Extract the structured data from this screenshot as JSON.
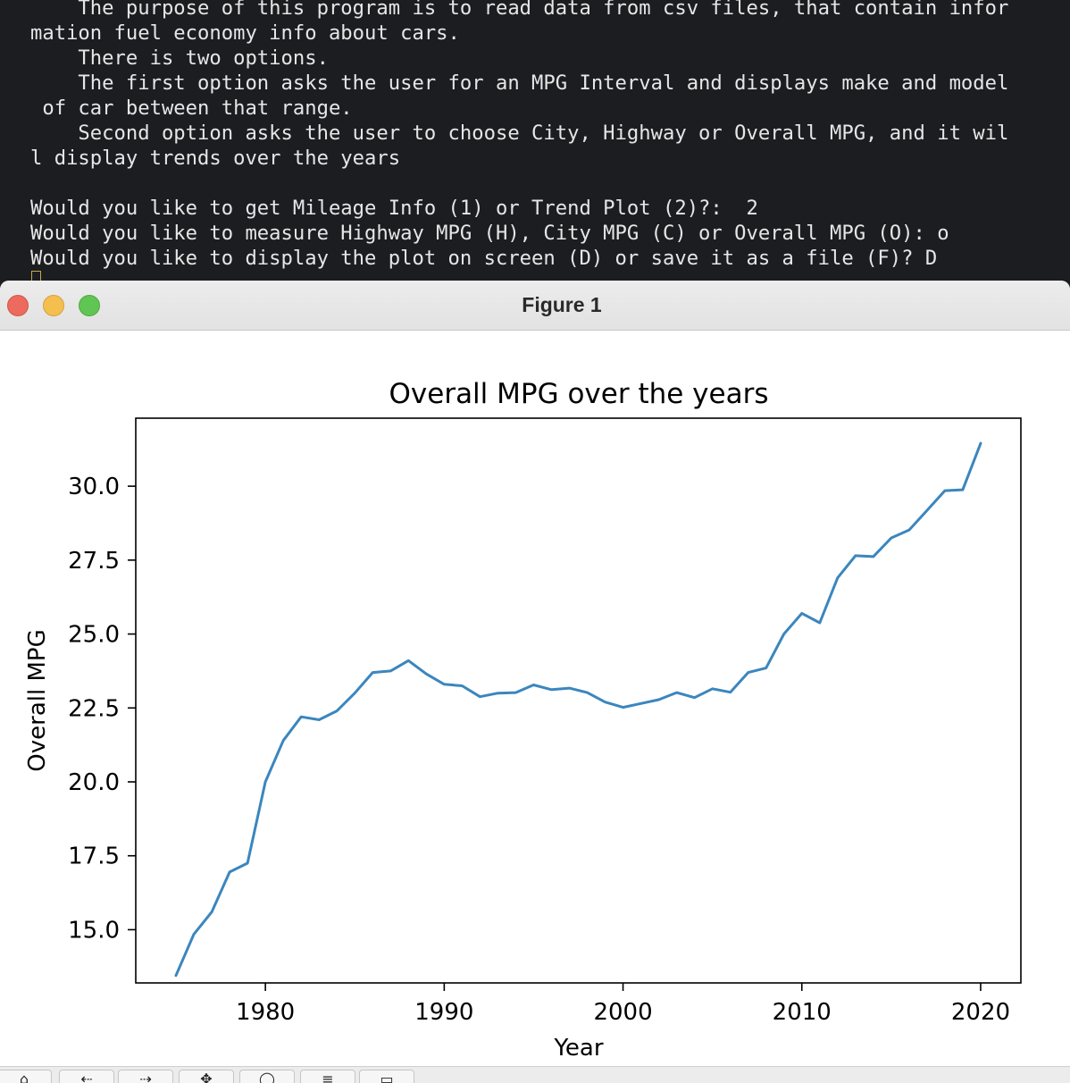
{
  "terminal": {
    "lines": [
      "    The purpose of this program is to read data from csv files, that contain infor",
      "mation fuel economy info about cars.",
      "    There is two options.",
      "    The first option asks the user for an MPG Interval and displays make and model",
      " of car between that range.",
      "    Second option asks the user to choose City, Highway or Overall MPG, and it wil",
      "l display trends over the years",
      "",
      "Would you like to get Mileage Info (1) or Trend Plot (2)?:  2",
      "Would you like to measure Highway MPG (H), City MPG (C) or Overall MPG (O): o",
      "Would you like to display the plot on screen (D) or save it as a file (F)? D"
    ]
  },
  "window": {
    "title": "Figure 1",
    "toolbar_icons": [
      "home-icon",
      "back-icon",
      "forward-icon",
      "pan-icon",
      "zoom-icon",
      "configure-icon",
      "save-icon"
    ]
  },
  "chart_data": {
    "type": "line",
    "title": "Overall MPG over the years",
    "xlabel": "Year",
    "ylabel": "Overall MPG",
    "xlim": [
      1972.75,
      2022.25
    ],
    "ylim": [
      13.2,
      32.3
    ],
    "xticks": [
      1980,
      1990,
      2000,
      2010,
      2020
    ],
    "xtick_labels": [
      "1980",
      "1990",
      "2000",
      "2010",
      "2020"
    ],
    "yticks": [
      15.0,
      17.5,
      20.0,
      22.5,
      25.0,
      27.5,
      30.0
    ],
    "ytick_labels": [
      "15.0",
      "17.5",
      "20.0",
      "22.5",
      "25.0",
      "27.5",
      "30.0"
    ],
    "grid": false,
    "line_color": "#3b86be",
    "x": [
      1975,
      1976,
      1977,
      1978,
      1979,
      1980,
      1981,
      1982,
      1983,
      1984,
      1985,
      1986,
      1987,
      1988,
      1989,
      1990,
      1991,
      1992,
      1993,
      1994,
      1995,
      1996,
      1997,
      1998,
      1999,
      2000,
      2001,
      2002,
      2003,
      2004,
      2005,
      2006,
      2007,
      2008,
      2009,
      2010,
      2011,
      2012,
      2013,
      2014,
      2015,
      2016,
      2017,
      2018,
      2019,
      2020
    ],
    "y": [
      13.45,
      14.85,
      15.6,
      16.95,
      17.25,
      20.0,
      21.4,
      22.2,
      22.1,
      22.4,
      23.0,
      23.7,
      23.75,
      24.1,
      23.65,
      23.3,
      23.25,
      22.88,
      23.0,
      23.02,
      23.28,
      23.12,
      23.17,
      23.02,
      22.7,
      22.52,
      22.65,
      22.78,
      23.02,
      22.85,
      23.15,
      23.03,
      23.7,
      23.85,
      25.0,
      25.7,
      25.38,
      26.9,
      27.65,
      27.62,
      28.25,
      28.52,
      29.18,
      29.85,
      29.88,
      31.45
    ]
  }
}
